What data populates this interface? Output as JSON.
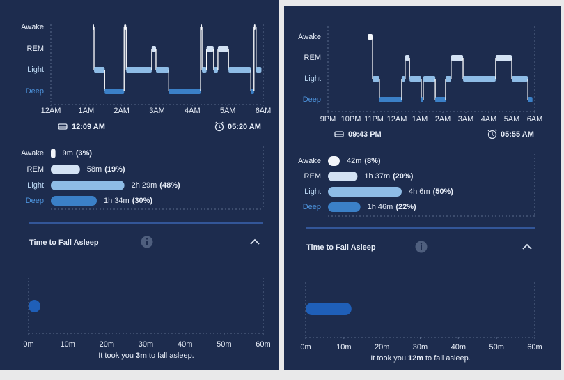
{
  "panels": [
    {
      "hypnogram": {
        "stages": [
          "Awake",
          "REM",
          "Light",
          "Deep"
        ],
        "xlim": [
          0,
          6
        ],
        "xticks": [
          {
            "value": 0,
            "label": "12AM"
          },
          {
            "value": 1,
            "label": "1AM"
          },
          {
            "value": 2,
            "label": "2AM"
          },
          {
            "value": 3,
            "label": "3AM"
          },
          {
            "value": 4,
            "label": "4AM"
          },
          {
            "value": 5,
            "label": "5AM"
          },
          {
            "value": 6,
            "label": "6AM"
          }
        ],
        "segments": [
          {
            "start": 1.18,
            "end": 1.22,
            "stage": "Awake"
          },
          {
            "start": 1.22,
            "end": 1.52,
            "stage": "Light"
          },
          {
            "start": 1.52,
            "end": 2.07,
            "stage": "Deep"
          },
          {
            "start": 2.07,
            "end": 2.13,
            "stage": "Awake"
          },
          {
            "start": 2.13,
            "end": 2.85,
            "stage": "Light"
          },
          {
            "start": 2.85,
            "end": 2.97,
            "stage": "REM"
          },
          {
            "start": 2.97,
            "end": 3.33,
            "stage": "Light"
          },
          {
            "start": 3.33,
            "end": 4.23,
            "stage": "Deep"
          },
          {
            "start": 4.23,
            "end": 4.27,
            "stage": "Awake"
          },
          {
            "start": 4.27,
            "end": 4.4,
            "stage": "Light"
          },
          {
            "start": 4.4,
            "end": 4.6,
            "stage": "REM"
          },
          {
            "start": 4.6,
            "end": 4.72,
            "stage": "Light"
          },
          {
            "start": 4.72,
            "end": 5.02,
            "stage": "REM"
          },
          {
            "start": 5.02,
            "end": 5.65,
            "stage": "Light"
          },
          {
            "start": 5.65,
            "end": 5.74,
            "stage": "Deep"
          },
          {
            "start": 5.74,
            "end": 5.78,
            "stage": "Awake"
          },
          {
            "start": 5.8,
            "end": 5.95,
            "stage": "Light"
          }
        ]
      },
      "bedtime": "12:09 AM",
      "wake_time": "05:20 AM",
      "breakdown": [
        {
          "stage": "Awake",
          "duration": "9m",
          "percent": 3,
          "percent_label": "(3%)"
        },
        {
          "stage": "REM",
          "duration": "58m",
          "percent": 19,
          "percent_label": "(19%)"
        },
        {
          "stage": "Light",
          "duration": "2h 29m",
          "percent": 48,
          "percent_label": "(48%)"
        },
        {
          "stage": "Deep",
          "duration": "1h 34m",
          "percent": 30,
          "percent_label": "(30%)"
        }
      ],
      "section_title": "Time to Fall Asleep",
      "fall_asleep": {
        "xlim": [
          0,
          60
        ],
        "xticks": [
          {
            "value": 0,
            "label": "0m"
          },
          {
            "value": 10,
            "label": "10m"
          },
          {
            "value": 20,
            "label": "20m"
          },
          {
            "value": 30,
            "label": "30m"
          },
          {
            "value": 40,
            "label": "40m"
          },
          {
            "value": 50,
            "label": "50m"
          },
          {
            "value": 60,
            "label": "60m"
          }
        ],
        "value": 3,
        "value_label": "3m",
        "caption_before": "It took you",
        "caption_after": "to fall asleep."
      }
    },
    {
      "hypnogram": {
        "stages": [
          "Awake",
          "REM",
          "Light",
          "Deep"
        ],
        "xlim": [
          0,
          9
        ],
        "xticks": [
          {
            "value": 0,
            "label": "9PM"
          },
          {
            "value": 1,
            "label": "10PM"
          },
          {
            "value": 2,
            "label": "11PM"
          },
          {
            "value": 3,
            "label": "12AM"
          },
          {
            "value": 4,
            "label": "1AM"
          },
          {
            "value": 5,
            "label": "2AM"
          },
          {
            "value": 6,
            "label": "3AM"
          },
          {
            "value": 7,
            "label": "4AM"
          },
          {
            "value": 8,
            "label": "5AM"
          },
          {
            "value": 9,
            "label": "6AM"
          }
        ],
        "segments": [
          {
            "start": 1.73,
            "end": 1.94,
            "stage": "Awake"
          },
          {
            "start": 1.94,
            "end": 2.24,
            "stage": "Light"
          },
          {
            "start": 2.24,
            "end": 3.21,
            "stage": "Deep"
          },
          {
            "start": 3.21,
            "end": 3.36,
            "stage": "Light"
          },
          {
            "start": 3.36,
            "end": 3.55,
            "stage": "REM"
          },
          {
            "start": 3.55,
            "end": 4.06,
            "stage": "Light"
          },
          {
            "start": 4.06,
            "end": 4.15,
            "stage": "Deep"
          },
          {
            "start": 4.15,
            "end": 4.67,
            "stage": "Light"
          },
          {
            "start": 4.67,
            "end": 5.12,
            "stage": "Deep"
          },
          {
            "start": 5.12,
            "end": 5.36,
            "stage": "Light"
          },
          {
            "start": 5.36,
            "end": 5.88,
            "stage": "REM"
          },
          {
            "start": 5.88,
            "end": 7.3,
            "stage": "Light"
          },
          {
            "start": 7.3,
            "end": 8.0,
            "stage": "REM"
          },
          {
            "start": 8.0,
            "end": 8.7,
            "stage": "Light"
          },
          {
            "start": 8.7,
            "end": 8.9,
            "stage": "Deep"
          }
        ]
      },
      "bedtime": "09:43 PM",
      "wake_time": "05:55 AM",
      "breakdown": [
        {
          "stage": "Awake",
          "duration": "42m",
          "percent": 8,
          "percent_label": "(8%)"
        },
        {
          "stage": "REM",
          "duration": "1h 37m",
          "percent": 20,
          "percent_label": "(20%)"
        },
        {
          "stage": "Light",
          "duration": "4h 6m",
          "percent": 50,
          "percent_label": "(50%)"
        },
        {
          "stage": "Deep",
          "duration": "1h 46m",
          "percent": 22,
          "percent_label": "(22%)"
        }
      ],
      "section_title": "Time to Fall Asleep",
      "fall_asleep": {
        "xlim": [
          0,
          60
        ],
        "xticks": [
          {
            "value": 0,
            "label": "0m"
          },
          {
            "value": 10,
            "label": "10m"
          },
          {
            "value": 20,
            "label": "20m"
          },
          {
            "value": 30,
            "label": "30m"
          },
          {
            "value": 40,
            "label": "40m"
          },
          {
            "value": 50,
            "label": "50m"
          },
          {
            "value": 60,
            "label": "60m"
          }
        ],
        "value": 12,
        "value_label": "12m",
        "caption_before": "It took you",
        "caption_after": "to fall asleep."
      }
    }
  ]
}
